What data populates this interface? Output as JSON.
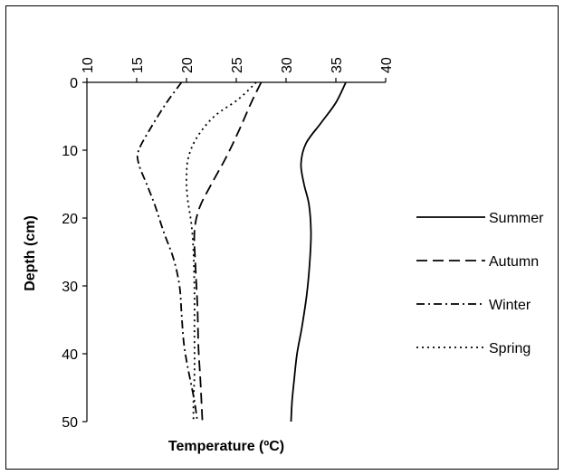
{
  "chart_data": {
    "type": "line",
    "title": "",
    "xlabel": "Temperature (ºC)",
    "ylabel": "Depth (cm)",
    "x_axis_position": "top",
    "y_axis_inverted": true,
    "xlim": [
      10,
      40
    ],
    "ylim": [
      0,
      50
    ],
    "x_ticks": [
      10,
      15,
      20,
      25,
      30,
      35,
      40
    ],
    "y_ticks": [
      0,
      10,
      20,
      30,
      40,
      50
    ],
    "grid": false,
    "legend_position": "right",
    "series": [
      {
        "name": "Summer",
        "style": "solid",
        "points": [
          [
            36,
            0
          ],
          [
            35,
            3
          ],
          [
            33.5,
            6
          ],
          [
            32,
            9
          ],
          [
            31.5,
            12
          ],
          [
            31.8,
            15
          ],
          [
            32.3,
            18
          ],
          [
            32.5,
            22
          ],
          [
            32.4,
            26
          ],
          [
            32.1,
            31
          ],
          [
            31.6,
            36
          ],
          [
            31.1,
            40
          ],
          [
            30.8,
            44
          ],
          [
            30.6,
            47
          ],
          [
            30.5,
            50
          ]
        ]
      },
      {
        "name": "Autumn",
        "style": "dashed",
        "points": [
          [
            27.5,
            0
          ],
          [
            26.5,
            3
          ],
          [
            25.3,
            7
          ],
          [
            24,
            11
          ],
          [
            22.5,
            15
          ],
          [
            21.3,
            18.5
          ],
          [
            20.8,
            22
          ],
          [
            20.9,
            27
          ],
          [
            21.1,
            33
          ],
          [
            21.2,
            39
          ],
          [
            21.4,
            44
          ],
          [
            21.6,
            50
          ]
        ]
      },
      {
        "name": "Winter",
        "style": "dashdot",
        "points": [
          [
            19.5,
            0
          ],
          [
            18,
            3
          ],
          [
            16.5,
            6.5
          ],
          [
            15.2,
            10
          ],
          [
            15.2,
            12
          ],
          [
            16,
            15
          ],
          [
            16.8,
            18
          ],
          [
            17.7,
            22
          ],
          [
            18.7,
            26
          ],
          [
            19.3,
            30
          ],
          [
            19.5,
            34
          ],
          [
            19.7,
            38
          ],
          [
            20,
            41
          ],
          [
            20.4,
            44
          ],
          [
            20.8,
            47
          ],
          [
            21.1,
            50
          ]
        ]
      },
      {
        "name": "Spring",
        "style": "dotted",
        "points": [
          [
            27,
            0
          ],
          [
            25.2,
            2.5
          ],
          [
            22.8,
            5
          ],
          [
            21.1,
            8
          ],
          [
            20.2,
            11
          ],
          [
            20,
            14
          ],
          [
            20.1,
            17
          ],
          [
            20.5,
            21
          ],
          [
            20.7,
            25
          ],
          [
            20.8,
            31
          ],
          [
            20.8,
            37
          ],
          [
            20.8,
            43
          ],
          [
            20.7,
            47
          ],
          [
            20.7,
            50
          ]
        ]
      }
    ]
  }
}
